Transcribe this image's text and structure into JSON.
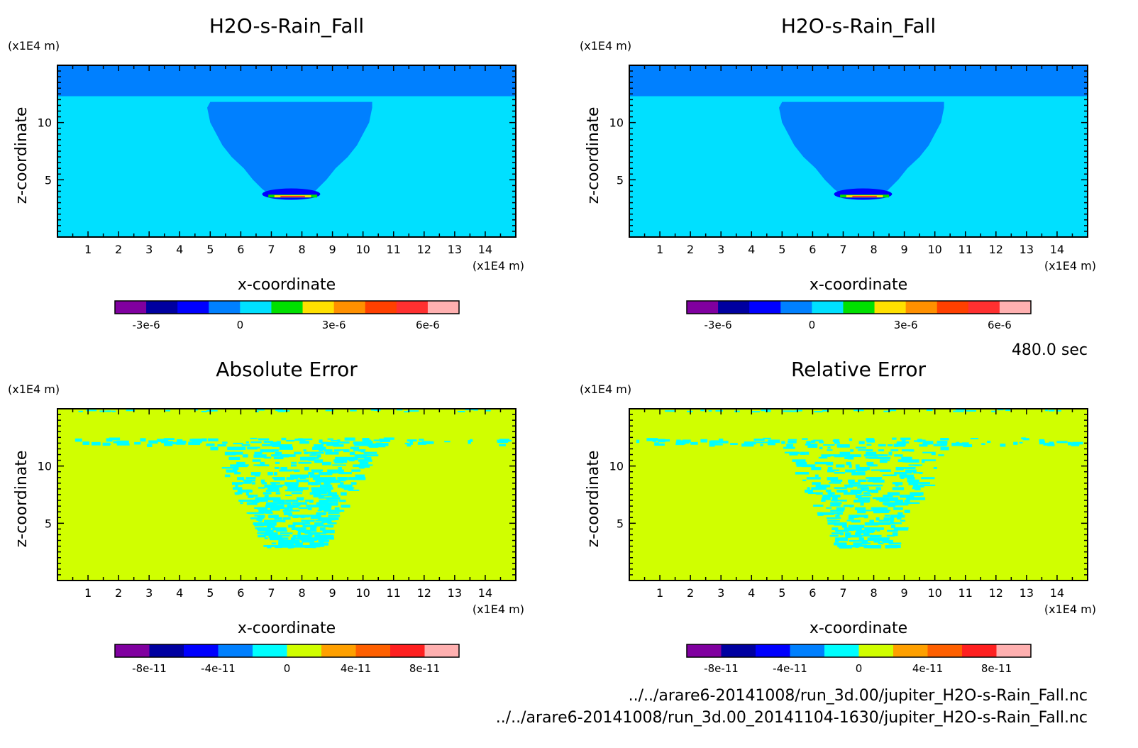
{
  "time_label": "480.0 sec",
  "footer": {
    "file1": "../../arare6-20141008/run_3d.00/jupiter_H2O-s-Rain_Fall.nc",
    "file2": "../../arare6-20141008/run_3d.00_20141104-1630/jupiter_H2O-s-Rain_Fall.nc"
  },
  "chart_data": [
    {
      "type": "heatmap",
      "title": "H2O-s-Rain_Fall",
      "xlabel": "x-coordinate",
      "ylabel": "z-coordinate",
      "x_unit": "(x1E4 m)",
      "y_unit": "(x1E4 m)",
      "xlim": [
        0,
        15
      ],
      "ylim": [
        0,
        15
      ],
      "x_ticks": [
        1,
        2,
        3,
        4,
        5,
        6,
        7,
        8,
        9,
        10,
        11,
        12,
        13,
        14
      ],
      "y_ticks": [
        5,
        10
      ],
      "colorbar": {
        "colors": [
          "#8000a0",
          "#0000a0",
          "#0000ff",
          "#0080ff",
          "#00e0ff",
          "#00e000",
          "#ffe000",
          "#ff9000",
          "#ff4000",
          "#ff3030",
          "#ffb0b0"
        ],
        "tick_labels": [
          "-3e-6",
          "0",
          "3e-6",
          "6e-6"
        ],
        "tick_values": [
          -3e-06,
          0,
          3e-06,
          6e-06
        ],
        "range": [
          -4e-06,
          7e-06
        ]
      },
      "background_value": 0,
      "top_band_value": -1e-06
    },
    {
      "type": "heatmap",
      "title": "H2O-s-Rain_Fall",
      "xlabel": "x-coordinate",
      "ylabel": "z-coordinate",
      "x_unit": "(x1E4 m)",
      "y_unit": "(x1E4 m)",
      "xlim": [
        0,
        15
      ],
      "ylim": [
        0,
        15
      ],
      "x_ticks": [
        1,
        2,
        3,
        4,
        5,
        6,
        7,
        8,
        9,
        10,
        11,
        12,
        13,
        14
      ],
      "y_ticks": [
        5,
        10
      ],
      "colorbar": {
        "colors": [
          "#8000a0",
          "#0000a0",
          "#0000ff",
          "#0080ff",
          "#00e0ff",
          "#00e000",
          "#ffe000",
          "#ff9000",
          "#ff4000",
          "#ff3030",
          "#ffb0b0"
        ],
        "tick_labels": [
          "-3e-6",
          "0",
          "3e-6",
          "6e-6"
        ],
        "tick_values": [
          -3e-06,
          0,
          3e-06,
          6e-06
        ],
        "range": [
          -4e-06,
          7e-06
        ]
      },
      "background_value": 0,
      "top_band_value": -1e-06
    },
    {
      "type": "heatmap",
      "title": "Absolute Error",
      "xlabel": "x-coordinate",
      "ylabel": "z-coordinate",
      "x_unit": "(x1E4 m)",
      "y_unit": "(x1E4 m)",
      "xlim": [
        0,
        15
      ],
      "ylim": [
        0,
        15
      ],
      "x_ticks": [
        1,
        2,
        3,
        4,
        5,
        6,
        7,
        8,
        9,
        10,
        11,
        12,
        13,
        14
      ],
      "y_ticks": [
        5,
        10
      ],
      "colorbar": {
        "colors": [
          "#8000a0",
          "#0000a0",
          "#0000ff",
          "#0080ff",
          "#00ffff",
          "#d0ff00",
          "#ffa000",
          "#ff6000",
          "#ff2020",
          "#ffb0b0"
        ],
        "tick_labels": [
          "-8e-11",
          "-4e-11",
          "0",
          "4e-11",
          "8e-11"
        ],
        "tick_values": [
          -8e-11,
          -4e-11,
          0,
          4e-11,
          8e-11
        ],
        "range": [
          -1e-10,
          1e-10
        ]
      },
      "background_value": 0
    },
    {
      "type": "heatmap",
      "title": "Relative Error",
      "xlabel": "x-coordinate",
      "ylabel": "z-coordinate",
      "x_unit": "(x1E4 m)",
      "y_unit": "(x1E4 m)",
      "xlim": [
        0,
        15
      ],
      "ylim": [
        0,
        15
      ],
      "x_ticks": [
        1,
        2,
        3,
        4,
        5,
        6,
        7,
        8,
        9,
        10,
        11,
        12,
        13,
        14
      ],
      "y_ticks": [
        5,
        10
      ],
      "colorbar": {
        "colors": [
          "#8000a0",
          "#0000a0",
          "#0000ff",
          "#0080ff",
          "#00ffff",
          "#d0ff00",
          "#ffa000",
          "#ff6000",
          "#ff2020",
          "#ffb0b0"
        ],
        "tick_labels": [
          "-8e-11",
          "-4e-11",
          "0",
          "4e-11",
          "8e-11"
        ],
        "tick_values": [
          -8e-11,
          -4e-11,
          0,
          4e-11,
          8e-11
        ],
        "range": [
          -1e-10,
          1e-10
        ]
      },
      "background_value": 0
    }
  ]
}
